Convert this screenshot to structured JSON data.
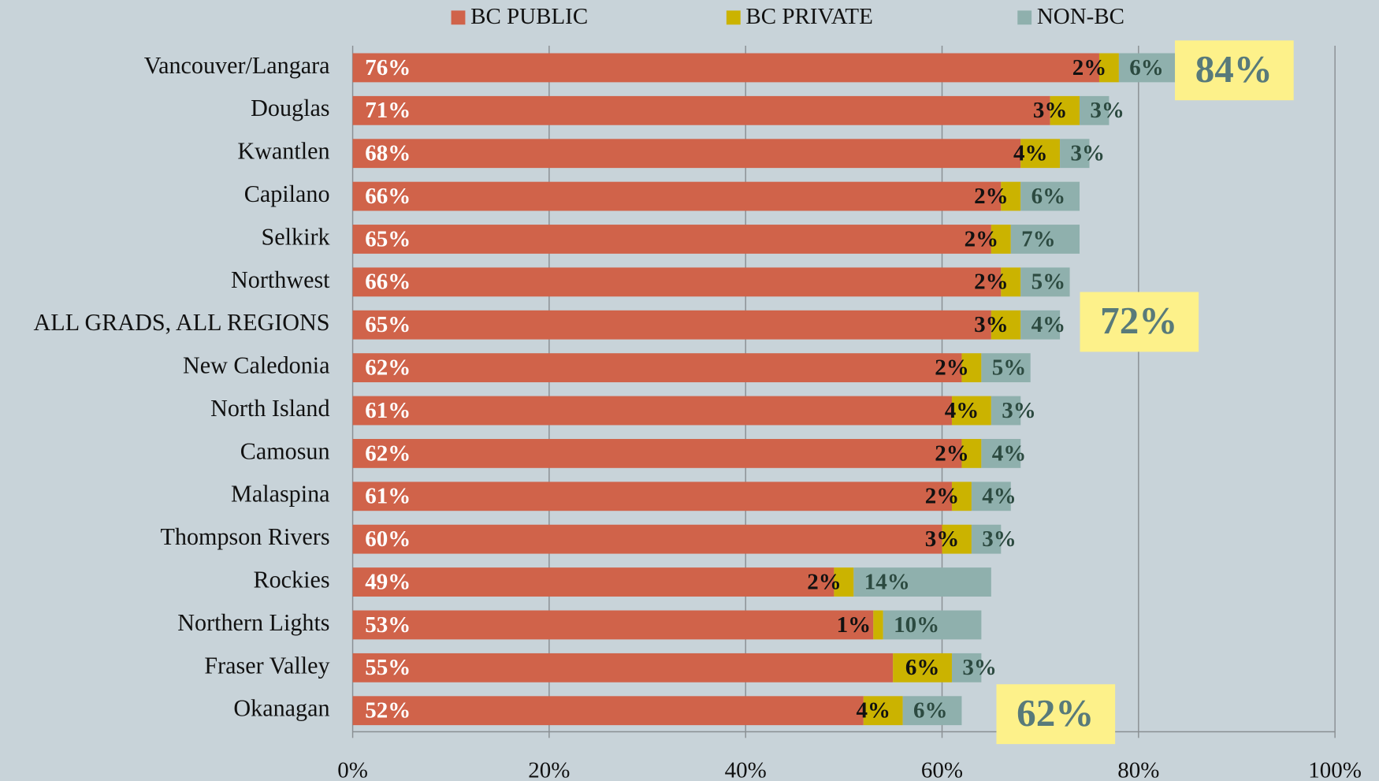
{
  "chart_data": {
    "type": "stacked-bar-horizontal",
    "categories": [
      "Vancouver/Langara",
      "Douglas",
      "Kwantlen",
      "Capilano",
      "Selkirk",
      "Northwest",
      "ALL GRADS, ALL REGIONS",
      "New Caledonia",
      "North Island",
      "Camosun",
      "Malaspina",
      "Thompson Rivers",
      "Rockies",
      "Northern Lights",
      "Fraser Valley",
      "Okanagan"
    ],
    "series": [
      {
        "name": "BC PUBLIC",
        "color": "#d0634a",
        "label_color": "#ffffff",
        "values": [
          76,
          71,
          68,
          66,
          65,
          66,
          65,
          62,
          61,
          62,
          61,
          60,
          49,
          53,
          55,
          52
        ],
        "value_labels": [
          "76%",
          "71%",
          "68%",
          "66%",
          "65%",
          "66%",
          "65%",
          "62%",
          "61%",
          "62%",
          "61%",
          "60%",
          "49%",
          "53%",
          "55%",
          "52%"
        ]
      },
      {
        "name": "BC PRIVATE",
        "color": "#cbb300",
        "label_color": "#111111",
        "values": [
          2,
          3,
          4,
          2,
          2,
          2,
          3,
          2,
          4,
          2,
          2,
          3,
          2,
          1,
          6,
          4
        ],
        "value_labels": [
          "2%",
          "3%",
          "4%",
          "2%",
          "2%",
          "2%",
          "3%",
          "2%",
          "4%",
          "2%",
          "2%",
          "3%",
          "2%",
          "1%",
          "6%",
          "4%"
        ]
      },
      {
        "name": "NON-BC",
        "color": "#8fb0ad",
        "label_color": "#2c4a40",
        "values": [
          6,
          3,
          3,
          6,
          7,
          5,
          4,
          5,
          3,
          4,
          4,
          3,
          14,
          10,
          3,
          6
        ],
        "value_labels": [
          "6%",
          "3%",
          "3%",
          "6%",
          "7%",
          "5%",
          "4%",
          "5%",
          "3%",
          "4%",
          "4%",
          "3%",
          "14%",
          "10%",
          "3%",
          "6%"
        ]
      }
    ],
    "xlim": [
      0,
      100
    ],
    "xticks": [
      {
        "value": 0,
        "label": "0%"
      },
      {
        "value": 20,
        "label": "20%"
      },
      {
        "value": 40,
        "label": "40%"
      },
      {
        "value": 60,
        "label": "60%"
      },
      {
        "value": 80,
        "label": "80%"
      },
      {
        "value": 100,
        "label": "100%"
      }
    ],
    "grid": true,
    "legend": "top",
    "annotations": [
      "84%",
      "72%",
      "62%"
    ]
  }
}
